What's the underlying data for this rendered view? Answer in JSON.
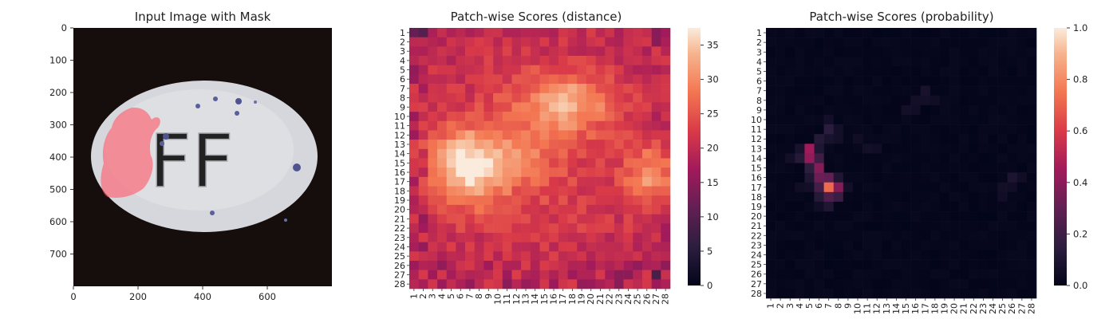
{
  "chart_data": [
    {
      "type": "image",
      "title": "Input Image with Mask",
      "xticks": [
        "0",
        "200",
        "400",
        "600"
      ],
      "xtick_values": [
        0,
        200,
        400,
        600
      ],
      "yticks": [
        "0",
        "100",
        "200",
        "300",
        "400",
        "500",
        "600",
        "700"
      ],
      "ytick_values": [
        0,
        100,
        200,
        300,
        400,
        500,
        600,
        700
      ],
      "xlim": [
        0,
        800
      ],
      "ylim": [
        800,
        0
      ],
      "image": {
        "background": "#150e0c",
        "object": "white oval pill embossed with FF, blue specks",
        "embossed_text": "FF",
        "pill_color": "#d7d8dd",
        "mask_color": "#ff5a6a"
      }
    },
    {
      "type": "heatmap",
      "title": "Patch-wise Scores (distance)",
      "xticks": [
        "1",
        "2",
        "3",
        "4",
        "5",
        "6",
        "7",
        "8",
        "9",
        "10",
        "11",
        "12",
        "13",
        "14",
        "15",
        "16",
        "17",
        "18",
        "19",
        "20",
        "21",
        "22",
        "23",
        "24",
        "25",
        "26",
        "27",
        "28"
      ],
      "yticks": [
        "1",
        "2",
        "3",
        "4",
        "5",
        "6",
        "7",
        "8",
        "9",
        "10",
        "11",
        "12",
        "13",
        "14",
        "15",
        "16",
        "17",
        "18",
        "19",
        "20",
        "21",
        "22",
        "23",
        "24",
        "25",
        "26",
        "27",
        "28"
      ],
      "colorbar": {
        "ticks": [
          "0",
          "5",
          "10",
          "15",
          "20",
          "25",
          "30",
          "35"
        ],
        "tick_values": [
          0,
          5,
          10,
          15,
          20,
          25,
          30,
          35
        ],
        "vmin": 0,
        "vmax": 37.5
      },
      "colormap": "rocket",
      "regions": [
        {
          "label": "upper-left bright blob",
          "center": [
            6.5,
            15.5
          ],
          "peak": 36
        },
        {
          "label": "upper-middle bright blob",
          "center": [
            17.5,
            8.5
          ],
          "peak": 31
        },
        {
          "label": "right bright blob",
          "center": [
            26,
            16
          ],
          "peak": 31
        }
      ]
    },
    {
      "type": "heatmap",
      "title": "Patch-wise Scores (probability)",
      "xticks": [
        "1",
        "2",
        "3",
        "4",
        "5",
        "6",
        "7",
        "8",
        "9",
        "10",
        "11",
        "12",
        "13",
        "14",
        "15",
        "16",
        "17",
        "18",
        "19",
        "20",
        "21",
        "22",
        "23",
        "24",
        "25",
        "26",
        "27",
        "28"
      ],
      "yticks": [
        "1",
        "2",
        "3",
        "4",
        "5",
        "6",
        "7",
        "8",
        "9",
        "10",
        "11",
        "12",
        "13",
        "14",
        "15",
        "16",
        "17",
        "18",
        "19",
        "20",
        "21",
        "22",
        "23",
        "24",
        "25",
        "26",
        "27",
        "28"
      ],
      "colorbar": {
        "ticks": [
          "0.0",
          "0.2",
          "0.4",
          "0.6",
          "0.8",
          "1.0"
        ],
        "tick_values": [
          0,
          0.2,
          0.4,
          0.6,
          0.8,
          1.0
        ],
        "vmin": 0,
        "vmax": 1
      },
      "colormap": "rocket",
      "cells": [
        {
          "x": 7,
          "y": 17,
          "value": 0.72
        },
        {
          "x": 5,
          "y": 13,
          "value": 0.45
        },
        {
          "x": 5,
          "y": 14,
          "value": 0.42
        },
        {
          "x": 6,
          "y": 15,
          "value": 0.38
        },
        {
          "x": 6,
          "y": 16,
          "value": 0.32
        },
        {
          "x": 7,
          "y": 16,
          "value": 0.3
        },
        {
          "x": 8,
          "y": 17,
          "value": 0.38
        },
        {
          "x": 6,
          "y": 17,
          "value": 0.22
        },
        {
          "x": 7,
          "y": 18,
          "value": 0.25
        },
        {
          "x": 8,
          "y": 18,
          "value": 0.18
        },
        {
          "x": 6,
          "y": 14,
          "value": 0.2
        },
        {
          "x": 4,
          "y": 14,
          "value": 0.12
        },
        {
          "x": 6,
          "y": 13,
          "value": 0.1
        },
        {
          "x": 7,
          "y": 12,
          "value": 0.08
        },
        {
          "x": 7,
          "y": 11,
          "value": 0.14
        },
        {
          "x": 6,
          "y": 12,
          "value": 0.12
        },
        {
          "x": 4,
          "y": 13,
          "value": 0.08
        },
        {
          "x": 5,
          "y": 15,
          "value": 0.15
        },
        {
          "x": 5,
          "y": 16,
          "value": 0.1
        },
        {
          "x": 6,
          "y": 18,
          "value": 0.12
        },
        {
          "x": 7,
          "y": 19,
          "value": 0.1
        },
        {
          "x": 8,
          "y": 16,
          "value": 0.1
        },
        {
          "x": 3,
          "y": 14,
          "value": 0.06
        },
        {
          "x": 8,
          "y": 11,
          "value": 0.06
        },
        {
          "x": 8,
          "y": 12,
          "value": 0.06
        },
        {
          "x": 4,
          "y": 17,
          "value": 0.05
        },
        {
          "x": 5,
          "y": 17,
          "value": 0.06
        },
        {
          "x": 7,
          "y": 10,
          "value": 0.06
        },
        {
          "x": 6,
          "y": 19,
          "value": 0.05
        },
        {
          "x": 9,
          "y": 17,
          "value": 0.06
        },
        {
          "x": 17,
          "y": 7,
          "value": 0.08
        },
        {
          "x": 16,
          "y": 8,
          "value": 0.06
        },
        {
          "x": 17,
          "y": 8,
          "value": 0.06
        },
        {
          "x": 15,
          "y": 9,
          "value": 0.06
        },
        {
          "x": 16,
          "y": 9,
          "value": 0.05
        },
        {
          "x": 18,
          "y": 8,
          "value": 0.05
        },
        {
          "x": 11,
          "y": 13,
          "value": 0.06
        },
        {
          "x": 12,
          "y": 13,
          "value": 0.05
        },
        {
          "x": 10,
          "y": 12,
          "value": 0.05
        },
        {
          "x": 26,
          "y": 16,
          "value": 0.09
        },
        {
          "x": 25,
          "y": 17,
          "value": 0.06
        },
        {
          "x": 26,
          "y": 17,
          "value": 0.05
        },
        {
          "x": 25,
          "y": 18,
          "value": 0.05
        },
        {
          "x": 27,
          "y": 16,
          "value": 0.05
        }
      ],
      "background_value": 0.02
    }
  ]
}
